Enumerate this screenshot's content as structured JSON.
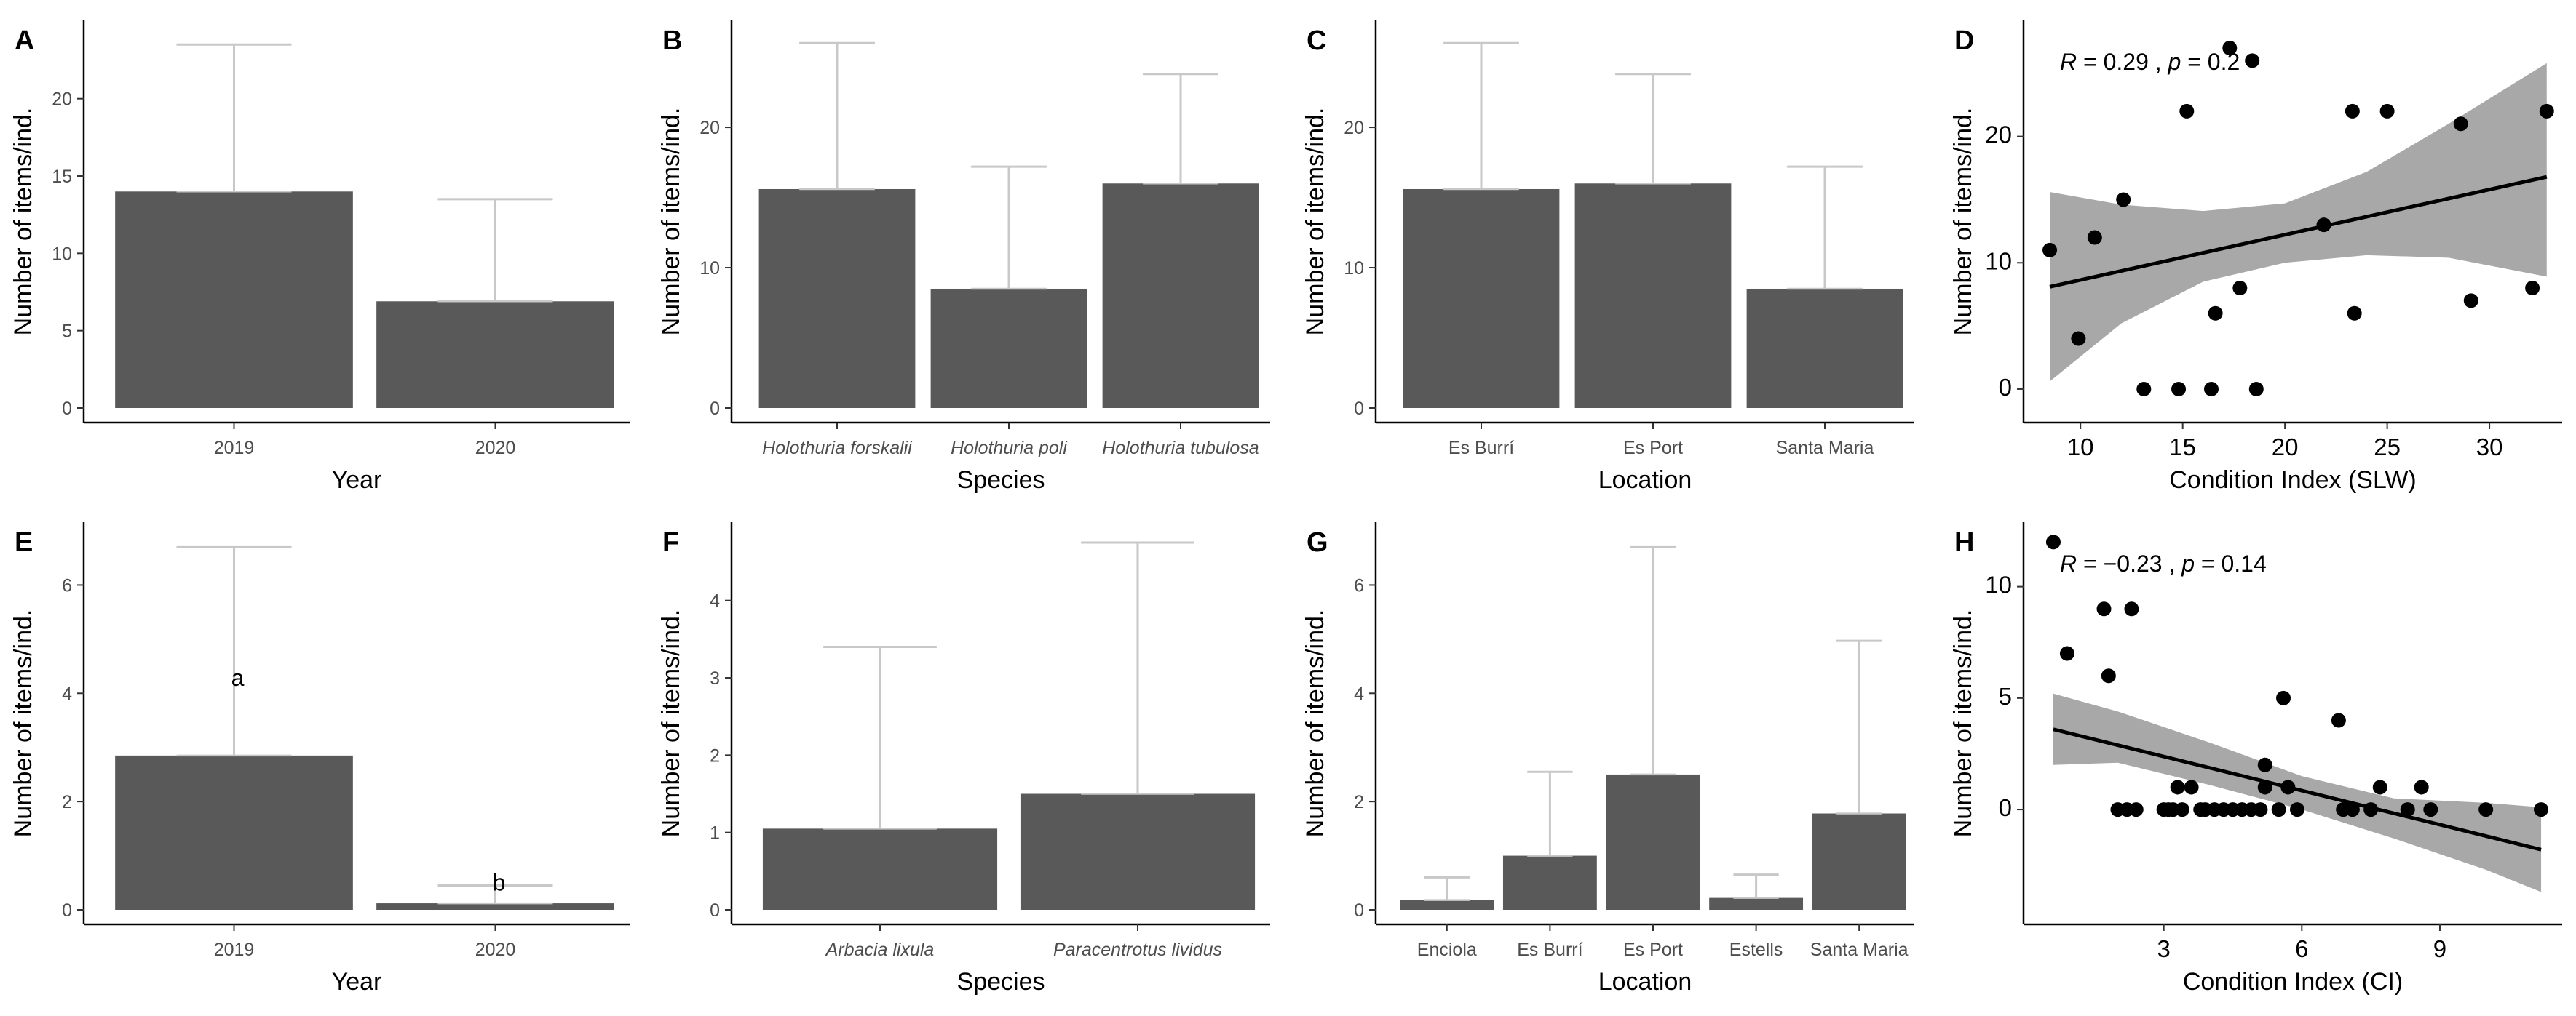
{
  "figure": {
    "panels": [
      {
        "letter": "A",
        "type": "bar",
        "xlabel": "Year",
        "ylabel": "Number of items/ind.",
        "ylim": [
          0,
          24.5
        ],
        "yticks": [
          0,
          5,
          10,
          15,
          20
        ],
        "categories": [
          "2019",
          "2020"
        ],
        "italic_categories": false,
        "values": [
          14,
          6.9
        ],
        "error_upper": [
          23.5,
          13.5
        ],
        "letters": []
      },
      {
        "letter": "B",
        "type": "bar",
        "xlabel": "Species",
        "ylabel": "Number of items/ind.",
        "ylim": [
          0,
          27
        ],
        "yticks": [
          0,
          10,
          20
        ],
        "categories": [
          "Holothuria forskalii",
          "Holothuria poli",
          "Holothuria tubulosa"
        ],
        "italic_categories": true,
        "values": [
          15.6,
          8.5,
          16
        ],
        "error_upper": [
          26,
          17.2,
          23.8
        ],
        "letters": []
      },
      {
        "letter": "C",
        "type": "bar",
        "xlabel": "Location",
        "ylabel": "Number of items/ind.",
        "ylim": [
          0,
          27
        ],
        "yticks": [
          0,
          10,
          20
        ],
        "categories": [
          "Es Burrí",
          "Es Port",
          "Santa Maria"
        ],
        "italic_categories": false,
        "values": [
          15.6,
          16,
          8.5
        ],
        "error_upper": [
          26,
          23.8,
          17.2
        ],
        "letters": []
      },
      {
        "letter": "D",
        "type": "scatter",
        "xlabel": "Condition Index (SLW)",
        "ylabel": "Number of items/ind.",
        "xlim": [
          8,
          33.2
        ],
        "ylim": [
          -1.5,
          28.5
        ],
        "xticks": [
          10,
          15,
          20,
          25,
          30
        ],
        "yticks": [
          0,
          10,
          20
        ],
        "annotation": {
          "r_label": "R",
          "r_text": " = 0.29 , ",
          "p_label": "p",
          "p_text": " = 0.2"
        },
        "points": [
          [
            8.5,
            11
          ],
          [
            9.9,
            4
          ],
          [
            10.7,
            12
          ],
          [
            12.1,
            15
          ],
          [
            13.1,
            0
          ],
          [
            14.8,
            0
          ],
          [
            15.2,
            22
          ],
          [
            16.4,
            0
          ],
          [
            16.6,
            6
          ],
          [
            17.3,
            27
          ],
          [
            17.8,
            8
          ],
          [
            18.4,
            26
          ],
          [
            18.6,
            0
          ],
          [
            21.9,
            13
          ],
          [
            23.3,
            22
          ],
          [
            23.4,
            6
          ],
          [
            25,
            22
          ],
          [
            28.6,
            21
          ],
          [
            29.1,
            7
          ],
          [
            32.1,
            8
          ],
          [
            32.8,
            22
          ]
        ],
        "fit": {
          "x": [
            8.5,
            32.8
          ],
          "y": [
            8.1,
            16.8
          ]
        },
        "band": {
          "x": [
            8.5,
            12,
            16,
            20,
            24,
            28,
            32.8
          ],
          "lower": [
            0.6,
            5.2,
            8.5,
            10.0,
            10.6,
            10.4,
            8.9
          ],
          "upper": [
            15.6,
            14.6,
            14.1,
            14.7,
            17.2,
            21.0,
            25.8
          ]
        }
      },
      {
        "letter": "E",
        "type": "bar",
        "xlabel": "Year",
        "ylabel": "Number of items/ind.",
        "ylim": [
          0,
          7
        ],
        "yticks": [
          0,
          2,
          4,
          6
        ],
        "categories": [
          "2019",
          "2020"
        ],
        "italic_categories": false,
        "values": [
          2.85,
          0.12
        ],
        "error_upper": [
          6.7,
          0.45
        ],
        "letters": [
          "a",
          "b"
        ]
      },
      {
        "letter": "F",
        "type": "bar",
        "xlabel": "Species",
        "ylabel": "Number of items/ind.",
        "ylim": [
          0,
          4.9
        ],
        "yticks": [
          0,
          1,
          2,
          3,
          4
        ],
        "categories": [
          "Arbacia lixula",
          "Paracentrotus lividus"
        ],
        "italic_categories": true,
        "values": [
          1.05,
          1.5
        ],
        "error_upper": [
          3.4,
          4.75
        ],
        "letters": []
      },
      {
        "letter": "G",
        "type": "bar",
        "xlabel": "Location",
        "ylabel": "Number of items/ind.",
        "ylim": [
          0,
          7
        ],
        "yticks": [
          0,
          2,
          4,
          6
        ],
        "categories": [
          "Enciola",
          "Es Burrí",
          "Es Port",
          "Estells",
          "Santa Maria"
        ],
        "italic_categories": false,
        "values": [
          0.18,
          1.0,
          2.5,
          0.22,
          1.78
        ],
        "error_upper": [
          0.6,
          2.55,
          6.7,
          0.65,
          4.97
        ],
        "letters": []
      },
      {
        "letter": "H",
        "type": "scatter",
        "xlabel": "Condition Index (CI)",
        "ylabel": "Number of items/ind.",
        "xlim": [
          0.3,
          11.5
        ],
        "ylim": [
          -4.5,
          12.5
        ],
        "xticks": [
          3,
          6,
          9
        ],
        "xtick_labels": [
          "3",
          "6",
          "9"
        ],
        "yticks": [
          0,
          5,
          10
        ],
        "annotation": {
          "r_label": "R",
          "r_text": " = −0.23 , ",
          "p_label": "p",
          "p_text": " = 0.14"
        },
        "points": [
          [
            0.6,
            12
          ],
          [
            0.9,
            7
          ],
          [
            1.7,
            9
          ],
          [
            1.8,
            6
          ],
          [
            2.0,
            0
          ],
          [
            2.2,
            0
          ],
          [
            2.3,
            9
          ],
          [
            2.4,
            0
          ],
          [
            3.0,
            0
          ],
          [
            3.1,
            0
          ],
          [
            3.2,
            0
          ],
          [
            3.3,
            1
          ],
          [
            3.4,
            0
          ],
          [
            3.6,
            1
          ],
          [
            3.8,
            0
          ],
          [
            3.9,
            0
          ],
          [
            4.1,
            0
          ],
          [
            4.3,
            0
          ],
          [
            4.5,
            0
          ],
          [
            4.7,
            0
          ],
          [
            4.9,
            0
          ],
          [
            5.1,
            0
          ],
          [
            5.2,
            1
          ],
          [
            5.2,
            2
          ],
          [
            5.5,
            0
          ],
          [
            5.6,
            5
          ],
          [
            5.7,
            1
          ],
          [
            5.9,
            0
          ],
          [
            6.8,
            4
          ],
          [
            6.9,
            0
          ],
          [
            7.1,
            0
          ],
          [
            7.5,
            0
          ],
          [
            7.7,
            1
          ],
          [
            8.3,
            0
          ],
          [
            8.6,
            1
          ],
          [
            8.8,
            0
          ],
          [
            10.0,
            0
          ],
          [
            11.2,
            0
          ]
        ],
        "fit": {
          "x": [
            0.6,
            11.2
          ],
          "y": [
            3.6,
            -1.8
          ]
        },
        "band": {
          "x": [
            0.6,
            2,
            4,
            6,
            8,
            10,
            11.2
          ],
          "lower": [
            2.0,
            2.1,
            1.1,
            0.0,
            -1.3,
            -2.7,
            -3.7
          ],
          "upper": [
            5.2,
            4.4,
            3.0,
            1.5,
            0.5,
            0.3,
            0.1
          ]
        }
      }
    ]
  }
}
